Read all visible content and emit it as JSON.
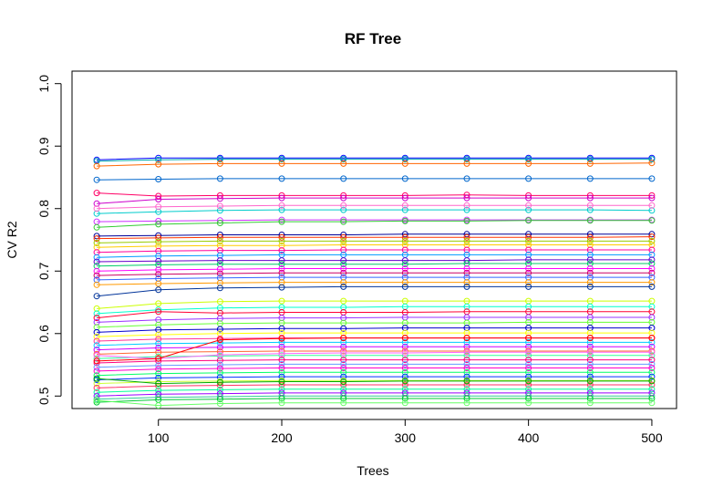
{
  "chart_data": {
    "type": "line",
    "title": "RF Tree",
    "xlabel": "Trees",
    "ylabel": "CV R2",
    "x": [
      50,
      100,
      150,
      200,
      250,
      300,
      350,
      400,
      450,
      500
    ],
    "xlim": [
      30,
      520
    ],
    "ylim": [
      0.48,
      1.02
    ],
    "xticks": [
      100,
      200,
      300,
      400,
      500
    ],
    "yticks": [
      0.5,
      0.6,
      0.7,
      0.8,
      0.9,
      1.0
    ],
    "ytick_labels": [
      "0.5",
      "0.6",
      "0.7",
      "0.8",
      "0.9",
      "1.0"
    ],
    "grid": false,
    "legend": "none",
    "marker": "open-circle",
    "series": [
      {
        "color": "#0000ff",
        "values": [
          0.878,
          0.881,
          0.881,
          0.881,
          0.881,
          0.881,
          0.881,
          0.881,
          0.881,
          0.881
        ]
      },
      {
        "color": "#00aaaa",
        "values": [
          0.876,
          0.878,
          0.879,
          0.879,
          0.879,
          0.879,
          0.879,
          0.879,
          0.879,
          0.879
        ]
      },
      {
        "color": "#ff6600",
        "values": [
          0.868,
          0.871,
          0.872,
          0.872,
          0.872,
          0.872,
          0.872,
          0.872,
          0.872,
          0.873
        ]
      },
      {
        "color": "#0066cc",
        "values": [
          0.846,
          0.847,
          0.848,
          0.848,
          0.848,
          0.848,
          0.848,
          0.848,
          0.848,
          0.848
        ]
      },
      {
        "color": "#ff0066",
        "values": [
          0.825,
          0.82,
          0.821,
          0.821,
          0.821,
          0.821,
          0.822,
          0.821,
          0.821,
          0.821
        ]
      },
      {
        "color": "#cc00cc",
        "values": [
          0.808,
          0.815,
          0.816,
          0.817,
          0.817,
          0.817,
          0.817,
          0.817,
          0.817,
          0.817
        ]
      },
      {
        "color": "#00cccc",
        "values": [
          0.792,
          0.795,
          0.797,
          0.798,
          0.798,
          0.798,
          0.798,
          0.798,
          0.798,
          0.797
        ]
      },
      {
        "color": "#ff66cc",
        "values": [
          0.8,
          0.803,
          0.804,
          0.805,
          0.805,
          0.805,
          0.805,
          0.805,
          0.805,
          0.805
        ]
      },
      {
        "color": "#cc33ff",
        "values": [
          0.779,
          0.78,
          0.781,
          0.782,
          0.782,
          0.782,
          0.782,
          0.782,
          0.782,
          0.782
        ]
      },
      {
        "color": "#33cc33",
        "values": [
          0.77,
          0.775,
          0.777,
          0.779,
          0.779,
          0.78,
          0.78,
          0.781,
          0.781,
          0.781
        ]
      },
      {
        "color": "#000099",
        "values": [
          0.756,
          0.757,
          0.758,
          0.758,
          0.758,
          0.759,
          0.759,
          0.759,
          0.759,
          0.759
        ]
      },
      {
        "color": "#ff3300",
        "values": [
          0.752,
          0.753,
          0.754,
          0.754,
          0.754,
          0.754,
          0.754,
          0.754,
          0.754,
          0.755
        ]
      },
      {
        "color": "#99cc00",
        "values": [
          0.745,
          0.747,
          0.748,
          0.748,
          0.748,
          0.748,
          0.748,
          0.748,
          0.748,
          0.748
        ]
      },
      {
        "color": "#ffcc00",
        "values": [
          0.738,
          0.74,
          0.741,
          0.741,
          0.742,
          0.742,
          0.742,
          0.742,
          0.742,
          0.742
        ]
      },
      {
        "color": "#ff0099",
        "values": [
          0.73,
          0.732,
          0.733,
          0.733,
          0.734,
          0.734,
          0.734,
          0.734,
          0.734,
          0.734
        ]
      },
      {
        "color": "#0099ff",
        "values": [
          0.722,
          0.724,
          0.725,
          0.726,
          0.726,
          0.726,
          0.726,
          0.726,
          0.726,
          0.726
        ]
      },
      {
        "color": "#6600cc",
        "values": [
          0.715,
          0.716,
          0.717,
          0.717,
          0.717,
          0.717,
          0.717,
          0.718,
          0.718,
          0.718
        ]
      },
      {
        "color": "#00cc66",
        "values": [
          0.708,
          0.71,
          0.711,
          0.711,
          0.711,
          0.711,
          0.712,
          0.712,
          0.712,
          0.712
        ]
      },
      {
        "color": "#ff00ff",
        "values": [
          0.7,
          0.702,
          0.703,
          0.704,
          0.704,
          0.704,
          0.704,
          0.704,
          0.704,
          0.704
        ]
      },
      {
        "color": "#cc0066",
        "values": [
          0.693,
          0.695,
          0.696,
          0.697,
          0.697,
          0.697,
          0.697,
          0.697,
          0.697,
          0.697
        ]
      },
      {
        "color": "#3366ff",
        "values": [
          0.686,
          0.688,
          0.689,
          0.69,
          0.69,
          0.69,
          0.69,
          0.69,
          0.69,
          0.69
        ]
      },
      {
        "color": "#ff9900",
        "values": [
          0.678,
          0.68,
          0.681,
          0.682,
          0.682,
          0.682,
          0.682,
          0.682,
          0.682,
          0.682
        ]
      },
      {
        "color": "#003399",
        "values": [
          0.66,
          0.67,
          0.673,
          0.674,
          0.675,
          0.675,
          0.675,
          0.675,
          0.675,
          0.675
        ]
      },
      {
        "color": "#ccff00",
        "values": [
          0.64,
          0.648,
          0.651,
          0.652,
          0.652,
          0.652,
          0.652,
          0.652,
          0.652,
          0.652
        ]
      },
      {
        "color": "#00ffcc",
        "values": [
          0.632,
          0.638,
          0.641,
          0.642,
          0.642,
          0.643,
          0.643,
          0.643,
          0.643,
          0.643
        ]
      },
      {
        "color": "#ff0033",
        "values": [
          0.625,
          0.635,
          0.633,
          0.634,
          0.634,
          0.634,
          0.635,
          0.635,
          0.635,
          0.635
        ]
      },
      {
        "color": "#9933ff",
        "values": [
          0.618,
          0.622,
          0.624,
          0.625,
          0.625,
          0.626,
          0.626,
          0.626,
          0.626,
          0.626
        ]
      },
      {
        "color": "#66ff33",
        "values": [
          0.61,
          0.614,
          0.616,
          0.617,
          0.617,
          0.617,
          0.617,
          0.618,
          0.618,
          0.618
        ]
      },
      {
        "color": "#0000cc",
        "values": [
          0.602,
          0.606,
          0.607,
          0.608,
          0.608,
          0.609,
          0.609,
          0.609,
          0.609,
          0.609
        ]
      },
      {
        "color": "#ffff00",
        "values": [
          0.595,
          0.598,
          0.6,
          0.601,
          0.601,
          0.601,
          0.601,
          0.601,
          0.601,
          0.601
        ]
      },
      {
        "color": "#ff3399",
        "values": [
          0.588,
          0.591,
          0.592,
          0.593,
          0.593,
          0.593,
          0.593,
          0.593,
          0.593,
          0.593
        ]
      },
      {
        "color": "#00ccff",
        "values": [
          0.581,
          0.584,
          0.585,
          0.586,
          0.586,
          0.586,
          0.586,
          0.586,
          0.586,
          0.586
        ]
      },
      {
        "color": "#cc00ff",
        "values": [
          0.574,
          0.577,
          0.578,
          0.579,
          0.579,
          0.579,
          0.579,
          0.579,
          0.579,
          0.579
        ]
      },
      {
        "color": "#ff6633",
        "values": [
          0.567,
          0.57,
          0.571,
          0.572,
          0.572,
          0.572,
          0.572,
          0.572,
          0.572,
          0.572
        ]
      },
      {
        "color": "#33ff99",
        "values": [
          0.56,
          0.563,
          0.564,
          0.565,
          0.565,
          0.565,
          0.565,
          0.565,
          0.565,
          0.565
        ]
      },
      {
        "color": "#ff0080",
        "values": [
          0.553,
          0.556,
          0.557,
          0.558,
          0.558,
          0.558,
          0.558,
          0.558,
          0.558,
          0.558
        ]
      },
      {
        "color": "#6699ff",
        "values": [
          0.546,
          0.549,
          0.55,
          0.551,
          0.551,
          0.551,
          0.551,
          0.551,
          0.551,
          0.551
        ]
      },
      {
        "color": "#ff00cc",
        "values": [
          0.54,
          0.543,
          0.544,
          0.545,
          0.545,
          0.545,
          0.545,
          0.545,
          0.545,
          0.545
        ]
      },
      {
        "color": "#00ff66",
        "values": [
          0.533,
          0.536,
          0.537,
          0.538,
          0.538,
          0.538,
          0.538,
          0.538,
          0.538,
          0.538
        ]
      },
      {
        "color": "#0033ff",
        "values": [
          0.526,
          0.529,
          0.53,
          0.531,
          0.531,
          0.531,
          0.531,
          0.531,
          0.531,
          0.531
        ]
      },
      {
        "color": "#ccff33",
        "values": [
          0.52,
          0.523,
          0.524,
          0.525,
          0.525,
          0.525,
          0.525,
          0.525,
          0.525,
          0.525
        ]
      },
      {
        "color": "#ff3366",
        "values": [
          0.513,
          0.516,
          0.517,
          0.518,
          0.518,
          0.518,
          0.518,
          0.518,
          0.518,
          0.518
        ]
      },
      {
        "color": "#00ff99",
        "values": [
          0.506,
          0.509,
          0.51,
          0.511,
          0.511,
          0.511,
          0.511,
          0.511,
          0.511,
          0.511
        ]
      },
      {
        "color": "#9900ff",
        "values": [
          0.5,
          0.503,
          0.504,
          0.505,
          0.505,
          0.505,
          0.505,
          0.505,
          0.505,
          0.505
        ]
      },
      {
        "color": "#33cc99",
        "values": [
          0.495,
          0.498,
          0.499,
          0.5,
          0.5,
          0.5,
          0.5,
          0.5,
          0.5,
          0.5
        ]
      },
      {
        "color": "#00cc33",
        "values": [
          0.49,
          0.494,
          0.495,
          0.496,
          0.496,
          0.496,
          0.496,
          0.496,
          0.496,
          0.496
        ]
      },
      {
        "color": "#66ff66",
        "values": [
          0.493,
          0.485,
          0.488,
          0.489,
          0.489,
          0.489,
          0.489,
          0.489,
          0.489,
          0.489
        ]
      },
      {
        "color": "#ff66ff",
        "values": [
          0.565,
          0.56,
          0.566,
          0.568,
          0.569,
          0.569,
          0.57,
          0.57,
          0.57,
          0.57
        ]
      },
      {
        "color": "#ff0000",
        "values": [
          0.556,
          0.56,
          0.59,
          0.592,
          0.593,
          0.593,
          0.593,
          0.593,
          0.593,
          0.593
        ]
      },
      {
        "color": "#00aa00",
        "values": [
          0.528,
          0.52,
          0.522,
          0.523,
          0.523,
          0.524,
          0.524,
          0.524,
          0.524,
          0.524
        ]
      }
    ]
  }
}
